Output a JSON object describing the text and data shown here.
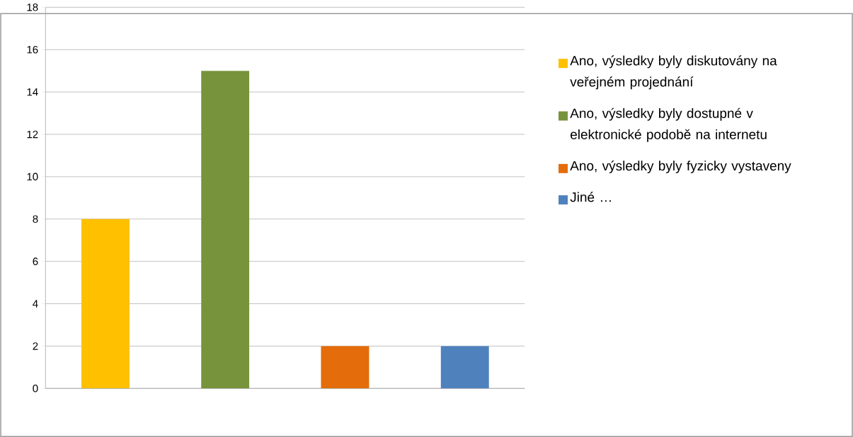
{
  "chart_data": {
    "type": "bar",
    "categories": [
      null,
      null,
      null,
      null
    ],
    "series": [
      {
        "name": "Ano, výsledky byly diskutovány na veřejném projednání",
        "color": "#ffc000",
        "values": [
          8,
          null,
          null,
          null
        ]
      },
      {
        "name": "Ano, výsledky byly dostupné v elektronické podobě na internetu",
        "color": "#77933c",
        "values": [
          null,
          15,
          null,
          null
        ]
      },
      {
        "name": "Ano, výsledky byly fyzicky vystaveny",
        "color": "#e46c0a",
        "values": [
          null,
          null,
          2,
          null
        ]
      },
      {
        "name": "Jiné  …",
        "color": "#4f81bd",
        "values": [
          null,
          null,
          null,
          2
        ]
      }
    ],
    "ylim": [
      0,
      18
    ],
    "yticks": [
      0,
      2,
      4,
      6,
      8,
      10,
      12,
      14,
      16,
      18
    ],
    "grid": "y",
    "legend": "right"
  }
}
